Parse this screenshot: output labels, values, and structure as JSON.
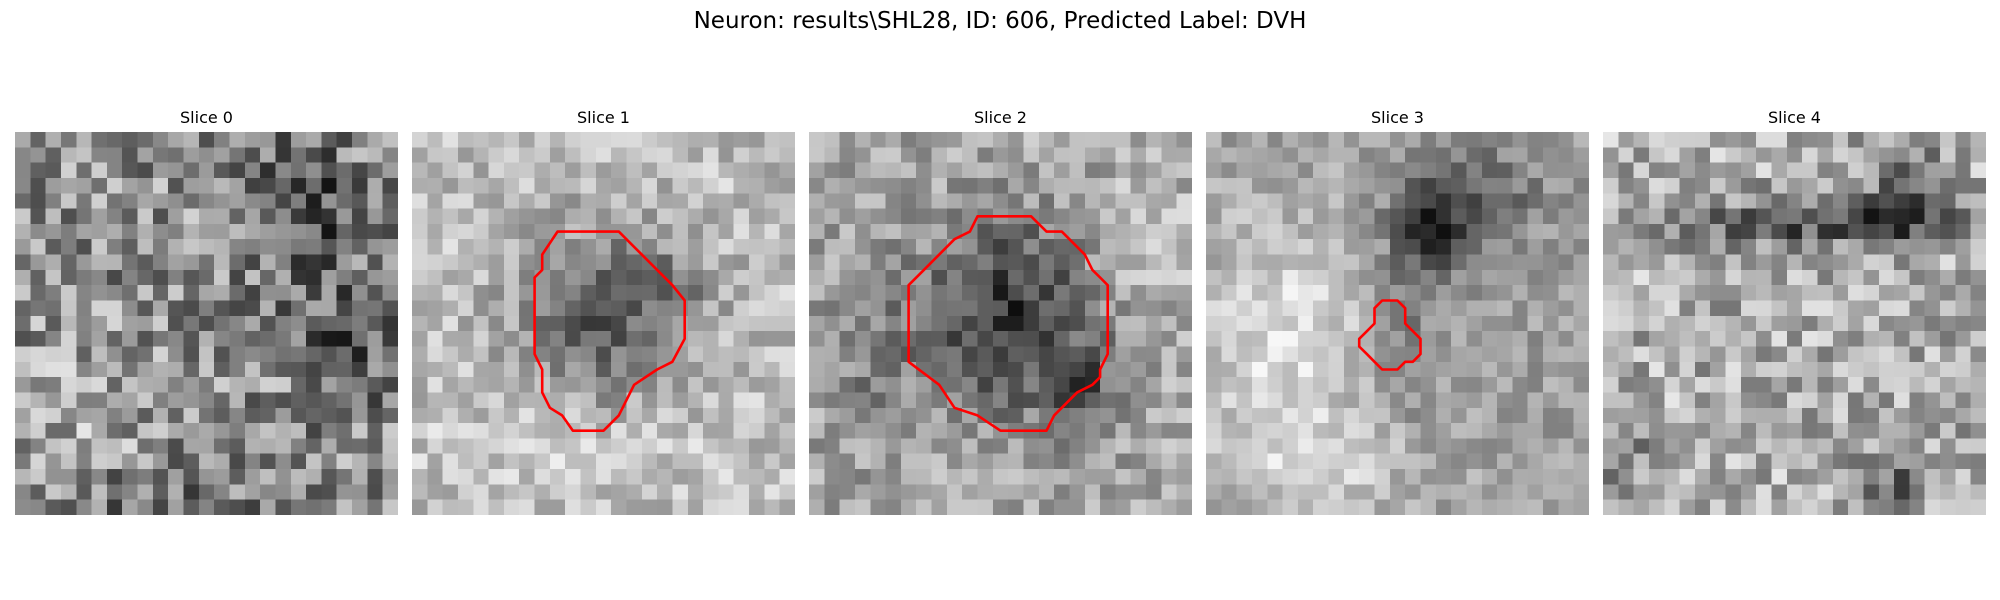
{
  "figure": {
    "title": "Neuron: results\\SHL28, ID: 606, Predicted Label: DVH"
  },
  "slices": [
    {
      "title": "Slice 0",
      "has_roi": false
    },
    {
      "title": "Slice 1",
      "has_roi": true
    },
    {
      "title": "Slice 2",
      "has_roi": true
    },
    {
      "title": "Slice 3",
      "has_roi": true
    },
    {
      "title": "Slice 4",
      "has_roi": false
    }
  ],
  "colors": {
    "roi_outline": "#ff0000",
    "colormap": "grayscale"
  }
}
